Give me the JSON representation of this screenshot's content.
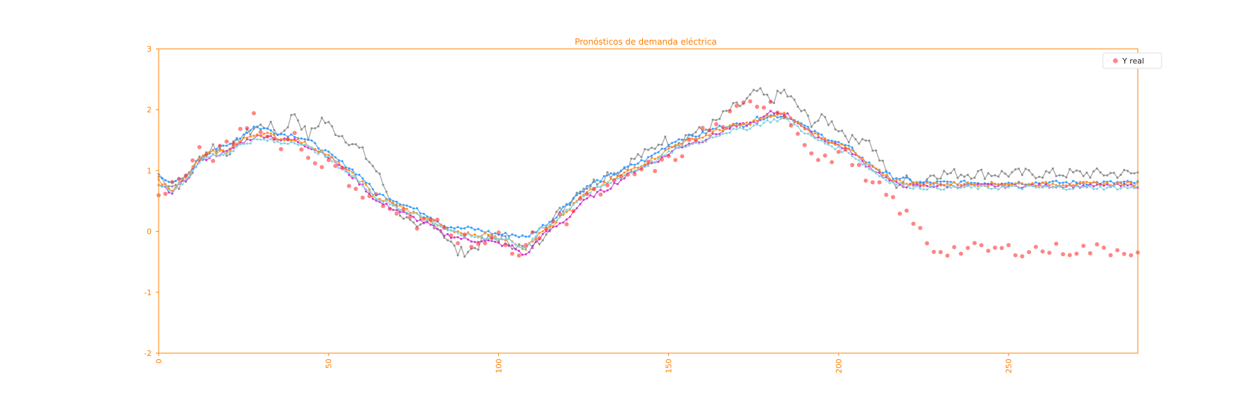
{
  "chart_data": {
    "type": "line",
    "title": "Pronósticos de demanda eléctrica",
    "xlabel": "",
    "ylabel": "",
    "xlim": [
      0,
      288
    ],
    "ylim": [
      -2,
      3
    ],
    "x_ticks": [
      0,
      50,
      100,
      150,
      200,
      250
    ],
    "y_ticks": [
      -2,
      -1,
      0,
      1,
      2,
      3
    ],
    "grid": false,
    "legend": {
      "placement": "top-right",
      "entries": [
        "Y real"
      ]
    },
    "colors": {
      "axis": "#ff8000",
      "actual": "#ff3333",
      "gray": "#8c8c8c",
      "blue": "#3399ff",
      "purple": "#cc33cc",
      "orange": "#ff8c1a",
      "cyan": "#80d0e0"
    },
    "x_step": 4,
    "actual_base": [
      0.65,
      0.75,
      0.95,
      1.28,
      1.25,
      1.38,
      1.62,
      1.92,
      1.55,
      1.45,
      1.58,
      1.22,
      1.15,
      1.05,
      0.85,
      0.62,
      0.55,
      0.35,
      0.3,
      0.05,
      0.2,
      0.15,
      -0.1,
      -0.15,
      -0.2,
      -0.1,
      -0.38,
      -0.2,
      -0.05,
      0.18,
      0.22,
      0.55,
      0.6,
      0.7,
      0.82,
      0.95,
      1.05,
      1.1,
      1.22,
      1.42,
      1.65,
      1.7,
      1.88,
      2.05,
      2.1,
      2.15,
      1.9,
      1.7,
      1.25,
      1.15,
      1.3,
      1.2,
      0.8,
      0.7,
      0.5,
      0.25,
      0.0,
      -0.3
    ],
    "series": [
      {
        "key": "gray",
        "values": [
          0.9,
          0.75,
          0.8,
          1.2,
          1.4,
          1.3,
          1.5,
          1.7,
          1.75,
          1.6,
          1.95,
          1.55,
          1.85,
          1.65,
          1.5,
          1.3,
          1.0,
          0.55,
          0.25,
          0.0,
          0.2,
          -0.05,
          -0.35,
          -0.3,
          -0.15,
          -0.1,
          -0.2,
          -0.3,
          -0.15,
          0.2,
          0.45,
          0.7,
          0.8,
          0.95,
          1.0,
          1.2,
          1.3,
          1.5,
          1.45,
          1.6,
          1.65,
          1.8,
          2.0,
          2.1,
          2.3,
          2.15,
          2.3,
          2.05,
          1.8,
          1.85,
          1.7,
          1.5,
          1.55,
          1.2,
          0.75,
          0.85,
          0.8,
          0.95
        ]
      },
      {
        "key": "blue",
        "values": [
          0.95,
          0.78,
          0.9,
          1.2,
          1.35,
          1.4,
          1.55,
          1.72,
          1.68,
          1.6,
          1.58,
          1.5,
          1.35,
          1.2,
          1.05,
          0.88,
          0.62,
          0.55,
          0.45,
          0.35,
          0.25,
          0.1,
          0.05,
          0.05,
          0.0,
          -0.05,
          -0.05,
          -0.1,
          0.05,
          0.2,
          0.45,
          0.65,
          0.8,
          0.9,
          1.0,
          1.1,
          1.2,
          1.35,
          1.5,
          1.55,
          1.6,
          1.7,
          1.75,
          1.75,
          1.85,
          1.9,
          1.9,
          1.8,
          1.65,
          1.55,
          1.45,
          1.35,
          1.15,
          1.0,
          0.9,
          0.85,
          0.8,
          0.8
        ]
      },
      {
        "key": "purple",
        "values": [
          0.75,
          0.65,
          0.85,
          1.15,
          1.25,
          1.3,
          1.45,
          1.55,
          1.58,
          1.5,
          1.5,
          1.4,
          1.3,
          1.15,
          0.95,
          0.75,
          0.5,
          0.4,
          0.3,
          0.2,
          0.1,
          -0.05,
          -0.1,
          -0.15,
          -0.15,
          -0.2,
          -0.25,
          -0.4,
          -0.1,
          0.05,
          0.2,
          0.45,
          0.6,
          0.7,
          0.85,
          1.0,
          1.1,
          1.2,
          1.35,
          1.45,
          1.5,
          1.6,
          1.7,
          1.75,
          1.8,
          1.95,
          1.95,
          1.8,
          1.6,
          1.5,
          1.42,
          1.3,
          1.1,
          0.95,
          0.8,
          0.75,
          0.75,
          0.75
        ]
      },
      {
        "key": "orange",
        "values": [
          0.82,
          0.7,
          0.88,
          1.2,
          1.3,
          1.32,
          1.48,
          1.6,
          1.6,
          1.52,
          1.52,
          1.42,
          1.32,
          1.15,
          0.98,
          0.8,
          0.55,
          0.48,
          0.38,
          0.28,
          0.18,
          0.05,
          -0.02,
          -0.05,
          -0.05,
          -0.1,
          -0.15,
          -0.3,
          0.0,
          0.12,
          0.32,
          0.55,
          0.7,
          0.8,
          0.92,
          1.05,
          1.15,
          1.28,
          1.42,
          1.5,
          1.55,
          1.65,
          1.72,
          1.75,
          1.82,
          1.9,
          1.92,
          1.78,
          1.62,
          1.52,
          1.43,
          1.32,
          1.12,
          0.98,
          0.85,
          0.8,
          0.78,
          0.78
        ]
      },
      {
        "key": "cyan",
        "values": [
          0.78,
          0.68,
          0.85,
          1.15,
          1.25,
          1.28,
          1.42,
          1.5,
          1.5,
          1.45,
          1.48,
          1.38,
          1.28,
          1.12,
          0.95,
          0.78,
          0.55,
          0.45,
          0.35,
          0.28,
          0.18,
          0.05,
          -0.05,
          -0.08,
          -0.1,
          -0.12,
          -0.15,
          -0.3,
          0.02,
          0.15,
          0.35,
          0.55,
          0.68,
          0.78,
          0.9,
          1.0,
          1.1,
          1.22,
          1.35,
          1.42,
          1.48,
          1.58,
          1.65,
          1.68,
          1.75,
          1.82,
          1.85,
          1.72,
          1.55,
          1.45,
          1.36,
          1.26,
          1.08,
          0.92,
          0.8,
          0.75,
          0.72,
          0.72
        ]
      }
    ]
  }
}
